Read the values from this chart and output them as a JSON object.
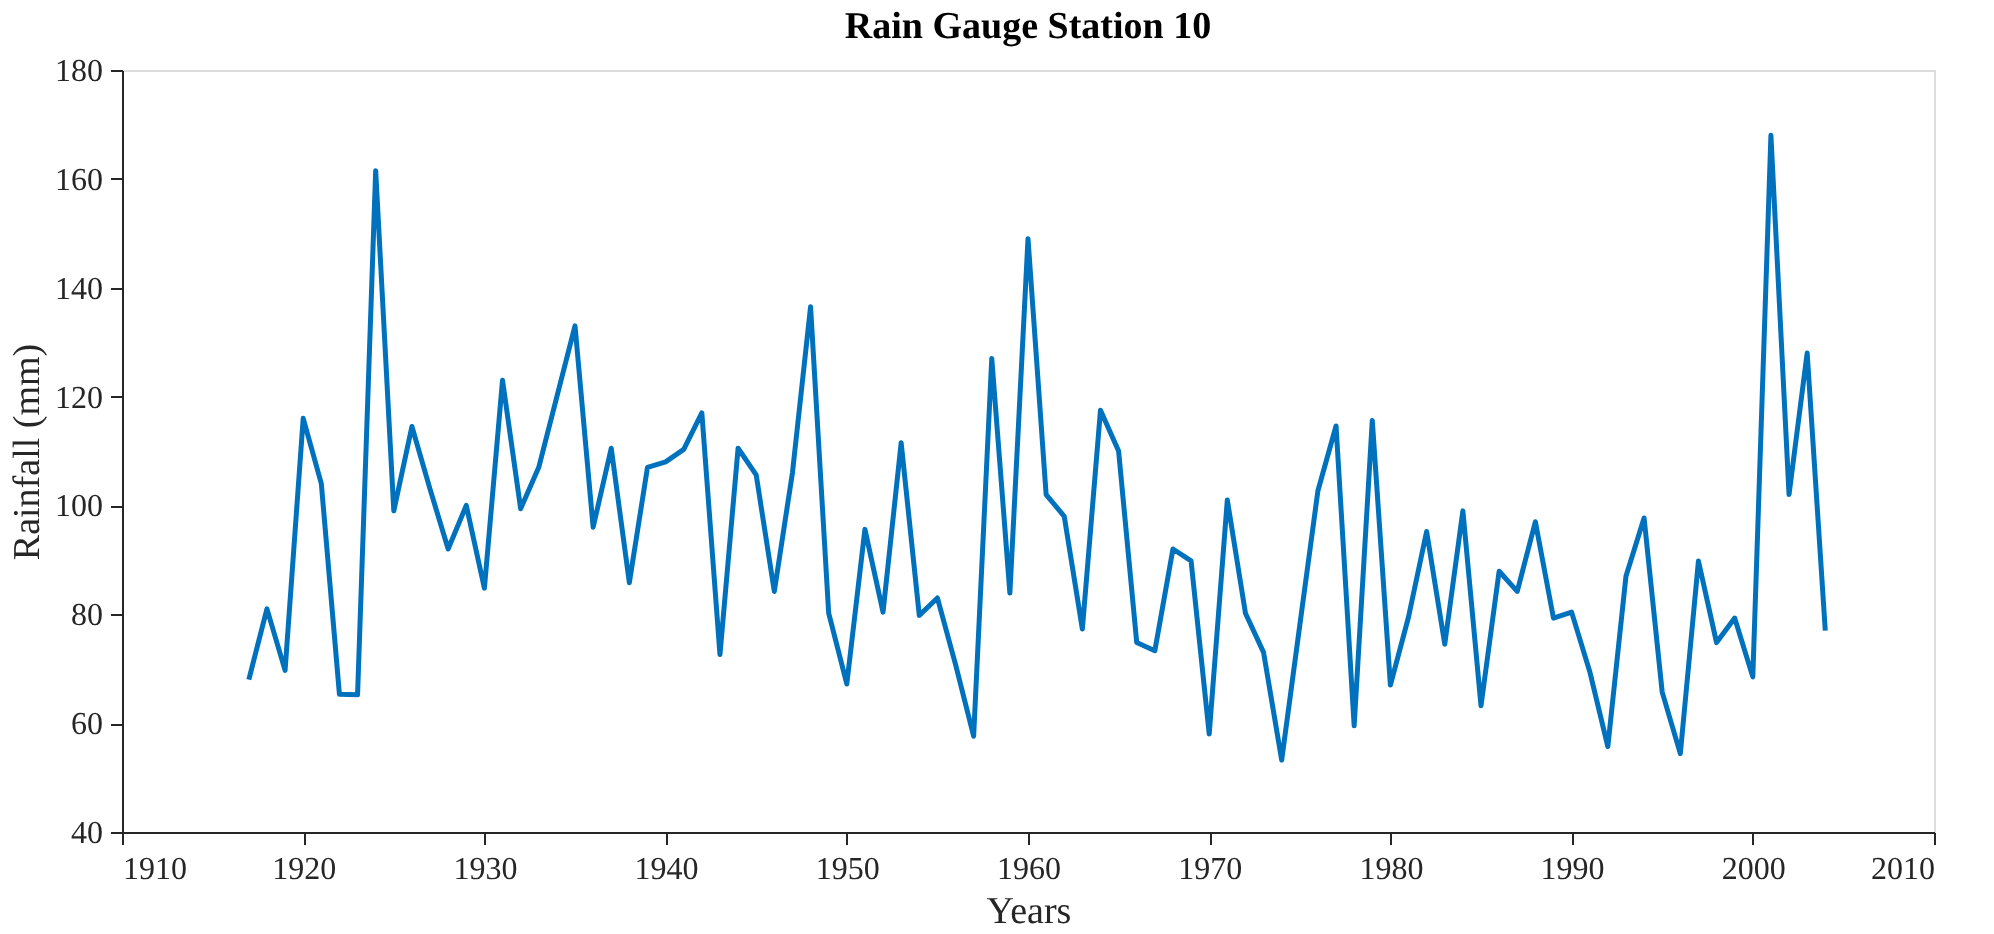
{
  "chart_data": {
    "type": "line",
    "title": "Rain Gauge Station 10",
    "xlabel": "Years",
    "ylabel": "Rainfall (mm)",
    "x": [
      1917,
      1918,
      1919,
      1920,
      1921,
      1922,
      1923,
      1924,
      1925,
      1926,
      1927,
      1928,
      1929,
      1930,
      1931,
      1932,
      1933,
      1934,
      1935,
      1936,
      1937,
      1938,
      1939,
      1940,
      1941,
      1942,
      1943,
      1944,
      1945,
      1946,
      1947,
      1948,
      1949,
      1950,
      1951,
      1952,
      1953,
      1954,
      1955,
      1956,
      1957,
      1958,
      1959,
      1960,
      1961,
      1962,
      1963,
      1964,
      1965,
      1966,
      1967,
      1968,
      1969,
      1970,
      1971,
      1972,
      1973,
      1974,
      1975,
      1976,
      1977,
      1978,
      1979,
      1980,
      1981,
      1982,
      1983,
      1984,
      1985,
      1986,
      1987,
      1988,
      1989,
      1990,
      1991,
      1992,
      1993,
      1994,
      1995,
      1996,
      1997,
      1998,
      1999,
      2000,
      2001,
      2002,
      2003,
      2004
    ],
    "series": [
      {
        "color": "#0072bd",
        "values": [
          68,
          81,
          69.7,
          116,
          104,
          65.3,
          65.2,
          161.5,
          99,
          114.5,
          103,
          92,
          100,
          84.8,
          123,
          99.4,
          107,
          120,
          133,
          96,
          110.5,
          85.8,
          107,
          108,
          110.3,
          117,
          72.6,
          110.5,
          105.6,
          84.2,
          106,
          136.5,
          80.2,
          67.2,
          95.6,
          80.4,
          111.5,
          79.8,
          83,
          70.8,
          57.6,
          127,
          83.9,
          149,
          102,
          98,
          77.3,
          117.5,
          110,
          74.8,
          73.3,
          92,
          89.8,
          58,
          101,
          80.2,
          73,
          53.2,
          78,
          102.7,
          114.6,
          59.5,
          115.6,
          67,
          79.5,
          95.2,
          74.5,
          99,
          63.2,
          87.9,
          84.2,
          97,
          79.3,
          80.4,
          69.5,
          55.7,
          87,
          97.7,
          65.7,
          54.4,
          89.8,
          74.8,
          79.3,
          68.5,
          168,
          102,
          128,
          77
        ]
      }
    ],
    "xlim": [
      1910,
      2010
    ],
    "xticks": [
      1910,
      1920,
      1930,
      1940,
      1950,
      1960,
      1970,
      1980,
      1990,
      2000,
      2010
    ],
    "ylim": [
      40,
      180
    ],
    "yticks": [
      40,
      60,
      80,
      100,
      120,
      140,
      160,
      180
    ],
    "grid": false,
    "marker": "none",
    "line_style": "solid"
  }
}
